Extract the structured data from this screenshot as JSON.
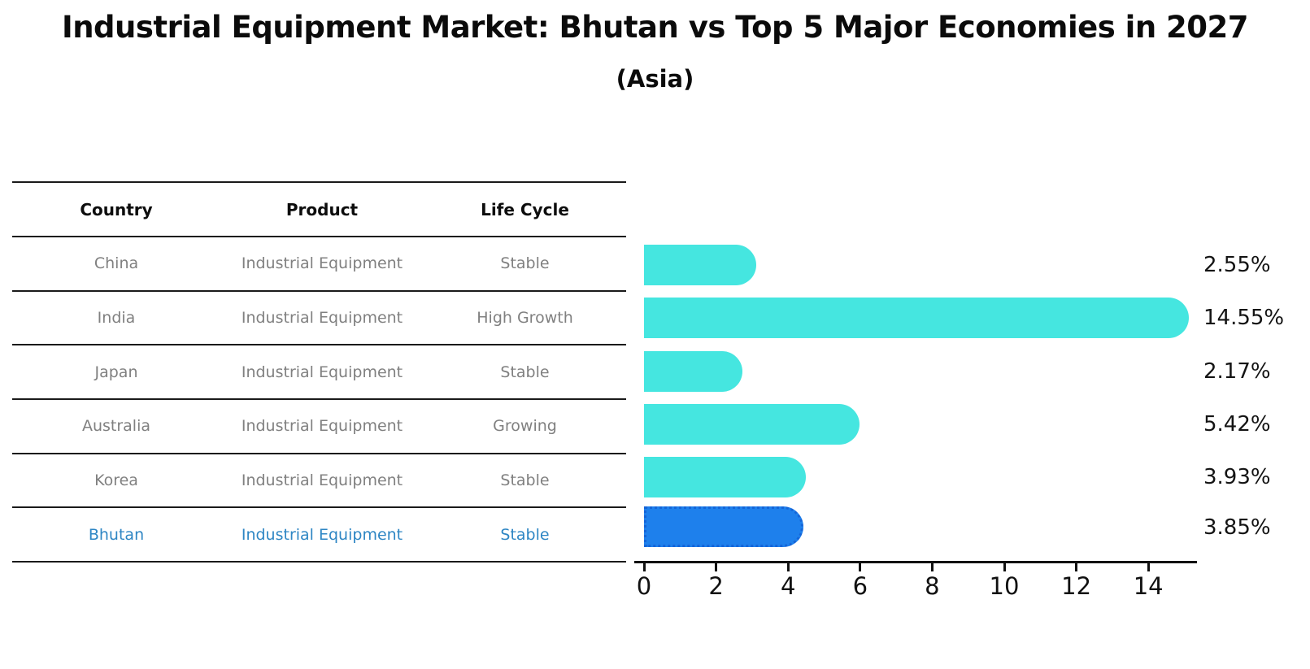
{
  "header": {
    "title": "Industrial Equipment Market: Bhutan vs Top 5 Major Economies in 2027",
    "subtitle": "(Asia)"
  },
  "table": {
    "headers": [
      "Country",
      "Product",
      "Life Cycle"
    ],
    "rows": [
      {
        "country": "China",
        "product": "Industrial Equipment",
        "life_cycle": "Stable",
        "highlight": false
      },
      {
        "country": "India",
        "product": "Industrial Equipment",
        "life_cycle": "High Growth",
        "highlight": false
      },
      {
        "country": "Japan",
        "product": "Industrial Equipment",
        "life_cycle": "Stable",
        "highlight": false
      },
      {
        "country": "Australia",
        "product": "Industrial Equipment",
        "life_cycle": "Growing",
        "highlight": false
      },
      {
        "country": "Korea",
        "product": "Industrial Equipment",
        "life_cycle": "Stable",
        "highlight": false
      },
      {
        "country": "Bhutan",
        "product": "Industrial Equipment",
        "life_cycle": "Stable",
        "highlight": true
      }
    ]
  },
  "chart_data": {
    "type": "bar",
    "orientation": "horizontal",
    "title": "Industrial Equipment Market: Bhutan vs Top 5 Major Economies in 2027",
    "subtitle": "(Asia)",
    "categories": [
      "China",
      "India",
      "Japan",
      "Australia",
      "Korea",
      "Bhutan"
    ],
    "values": [
      2.55,
      14.55,
      2.17,
      5.42,
      3.93,
      3.85
    ],
    "labels": [
      "2.55%",
      "14.55%",
      "2.17%",
      "5.42%",
      "3.93%",
      "3.85%"
    ],
    "highlight_index": 5,
    "xticks": [
      0,
      2,
      4,
      6,
      8,
      10,
      12,
      14
    ],
    "xlim": [
      0,
      15.4
    ],
    "grid": false,
    "legend": false,
    "colors": {
      "bar": "#45e6e0",
      "highlight_bar": "#1e80ec",
      "highlight_border": "#1565d8",
      "highlight_text": "#2e86c4",
      "row_text": "#808080",
      "axis": "#111111"
    }
  }
}
